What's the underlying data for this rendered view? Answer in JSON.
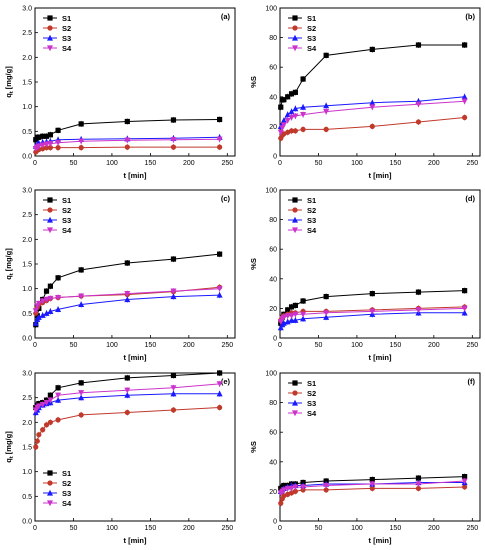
{
  "palette": {
    "S1": "#000000",
    "S2": "#c0392b",
    "S3": "#1a1aff",
    "S4": "#cc33cc"
  },
  "markers": {
    "S1": "square",
    "S2": "circle",
    "S3": "triangle-up",
    "S4": "triangle-down"
  },
  "chart_data": [
    {
      "panel": "(a)",
      "type": "scatter",
      "xlabel": "t [min]",
      "ylabel": "qt [mg/g]",
      "ylabel_main": "q",
      "ylabel_sub": "t",
      "ylabel_unit": " [mg/g]",
      "xlim": [
        0,
        260
      ],
      "ylim": [
        0,
        3.0
      ],
      "xticks": [
        0,
        50,
        100,
        150,
        200,
        250
      ],
      "yticks": [
        0.0,
        0.5,
        1.0,
        1.5,
        2.0,
        2.5,
        3.0
      ],
      "ytick_labels": [
        "0.0",
        "0.5",
        "1.0",
        "1.5",
        "2.0",
        "2.5",
        "3.0"
      ],
      "legend": "top-left",
      "x": [
        1,
        3,
        5,
        10,
        15,
        20,
        30,
        60,
        120,
        180,
        240
      ],
      "series": [
        {
          "name": "S1",
          "values": [
            0.33,
            0.38,
            0.38,
            0.4,
            0.4,
            0.43,
            0.52,
            0.65,
            0.7,
            0.73,
            0.74
          ]
        },
        {
          "name": "S2",
          "values": [
            0.08,
            0.12,
            0.13,
            0.15,
            0.17,
            0.17,
            0.17,
            0.17,
            0.18,
            0.18,
            0.18
          ]
        },
        {
          "name": "S3",
          "values": [
            0.2,
            0.24,
            0.26,
            0.28,
            0.29,
            0.3,
            0.33,
            0.34,
            0.35,
            0.36,
            0.38
          ]
        },
        {
          "name": "S4",
          "values": [
            0.15,
            0.18,
            0.2,
            0.22,
            0.24,
            0.25,
            0.27,
            0.3,
            0.32,
            0.33,
            0.34
          ]
        }
      ]
    },
    {
      "panel": "(b)",
      "type": "scatter",
      "xlabel": "t [min]",
      "ylabel": "%S",
      "xlim": [
        0,
        260
      ],
      "ylim": [
        0,
        100
      ],
      "xticks": [
        0,
        50,
        100,
        150,
        200,
        250
      ],
      "yticks": [
        0,
        20,
        40,
        60,
        80,
        100
      ],
      "ytick_labels": [
        "0",
        "20",
        "40",
        "60",
        "80",
        "100"
      ],
      "legend": "top-left",
      "x": [
        1,
        3,
        5,
        10,
        15,
        20,
        30,
        60,
        120,
        180,
        240
      ],
      "series": [
        {
          "name": "S1",
          "values": [
            33,
            38,
            38,
            40,
            42,
            43,
            52,
            68,
            72,
            75,
            75
          ]
        },
        {
          "name": "S2",
          "values": [
            12,
            14,
            15,
            16,
            17,
            17,
            18,
            18,
            20,
            23,
            26
          ]
        },
        {
          "name": "S3",
          "values": [
            20,
            22,
            24,
            28,
            30,
            32,
            33,
            34,
            36,
            37,
            40
          ]
        },
        {
          "name": "S4",
          "values": [
            16,
            19,
            21,
            24,
            26,
            27,
            28,
            30,
            33,
            35,
            37
          ]
        }
      ]
    },
    {
      "panel": "(c)",
      "type": "scatter",
      "xlabel": "t [min]",
      "ylabel": "qt [mg/g]",
      "ylabel_main": "q",
      "ylabel_sub": "t",
      "ylabel_unit": " [mg/g]",
      "xlim": [
        0,
        260
      ],
      "ylim": [
        0,
        3.0
      ],
      "xticks": [
        0,
        50,
        100,
        150,
        200,
        250
      ],
      "yticks": [
        0.0,
        0.5,
        1.0,
        1.5,
        2.0,
        2.5,
        3.0
      ],
      "ytick_labels": [
        "0.0",
        "0.5",
        "1.0",
        "1.5",
        "2.0",
        "2.5",
        "3.0"
      ],
      "legend": "top-left",
      "x": [
        1,
        3,
        5,
        10,
        15,
        20,
        30,
        60,
        120,
        180,
        240
      ],
      "series": [
        {
          "name": "S1",
          "values": [
            0.27,
            0.45,
            0.6,
            0.78,
            0.95,
            1.05,
            1.22,
            1.38,
            1.52,
            1.6,
            1.7
          ]
        },
        {
          "name": "S2",
          "values": [
            0.5,
            0.62,
            0.68,
            0.72,
            0.76,
            0.8,
            0.82,
            0.85,
            0.88,
            0.94,
            1.03
          ]
        },
        {
          "name": "S3",
          "values": [
            0.3,
            0.38,
            0.42,
            0.46,
            0.5,
            0.54,
            0.58,
            0.68,
            0.78,
            0.84,
            0.87
          ]
        },
        {
          "name": "S4",
          "values": [
            0.55,
            0.65,
            0.7,
            0.75,
            0.78,
            0.8,
            0.82,
            0.85,
            0.9,
            0.95,
            1.0
          ]
        }
      ]
    },
    {
      "panel": "(d)",
      "type": "scatter",
      "xlabel": "t [min]",
      "ylabel": "%S",
      "xlim": [
        0,
        260
      ],
      "ylim": [
        0,
        100
      ],
      "xticks": [
        0,
        50,
        100,
        150,
        200,
        250
      ],
      "yticks": [
        0,
        20,
        40,
        60,
        80,
        100
      ],
      "ytick_labels": [
        "0",
        "20",
        "40",
        "60",
        "80",
        "100"
      ],
      "legend": "top-left",
      "x": [
        1,
        3,
        5,
        10,
        15,
        20,
        30,
        60,
        120,
        180,
        240
      ],
      "series": [
        {
          "name": "S1",
          "values": [
            10,
            14,
            16,
            19,
            21,
            22,
            25,
            28,
            30,
            31,
            32
          ]
        },
        {
          "name": "S2",
          "values": [
            12,
            14,
            15,
            16,
            17,
            17,
            18,
            18,
            19,
            20,
            21
          ]
        },
        {
          "name": "S3",
          "values": [
            7,
            9,
            10,
            11,
            12,
            12,
            13,
            14,
            16,
            17,
            17
          ]
        },
        {
          "name": "S4",
          "values": [
            11,
            13,
            14,
            15,
            15,
            16,
            16,
            17,
            18,
            19,
            20
          ]
        }
      ]
    },
    {
      "panel": "(e)",
      "type": "scatter",
      "xlabel": "t [min]",
      "ylabel": "qt [mg/g]",
      "ylabel_main": "q",
      "ylabel_sub": "t",
      "ylabel_unit": " [mg/g]",
      "xlim": [
        0,
        260
      ],
      "ylim": [
        0,
        3.0
      ],
      "xticks": [
        0,
        50,
        100,
        150,
        200,
        250
      ],
      "yticks": [
        0.0,
        0.5,
        1.0,
        1.5,
        2.0,
        2.5,
        3.0
      ],
      "ytick_labels": [
        "0.0",
        "0.5",
        "1.0",
        "1.5",
        "2.0",
        "2.5",
        "3.0"
      ],
      "legend": "bottom-left",
      "x": [
        1,
        3,
        5,
        10,
        15,
        20,
        30,
        60,
        120,
        180,
        240
      ],
      "series": [
        {
          "name": "S1",
          "values": [
            2.3,
            2.35,
            2.38,
            2.4,
            2.45,
            2.55,
            2.7,
            2.8,
            2.9,
            2.95,
            3.0
          ]
        },
        {
          "name": "S2",
          "values": [
            1.5,
            1.62,
            1.75,
            1.85,
            1.95,
            2.0,
            2.05,
            2.15,
            2.2,
            2.25,
            2.3
          ]
        },
        {
          "name": "S3",
          "values": [
            2.2,
            2.25,
            2.3,
            2.35,
            2.38,
            2.4,
            2.45,
            2.5,
            2.55,
            2.58,
            2.58
          ]
        },
        {
          "name": "S4",
          "values": [
            2.25,
            2.3,
            2.33,
            2.36,
            2.4,
            2.45,
            2.55,
            2.6,
            2.65,
            2.7,
            2.78
          ]
        }
      ]
    },
    {
      "panel": "(f)",
      "type": "scatter",
      "xlabel": "t [min]",
      "ylabel": "%S",
      "xlim": [
        0,
        260
      ],
      "ylim": [
        0,
        100
      ],
      "xticks": [
        0,
        50,
        100,
        150,
        200,
        250
      ],
      "yticks": [
        0,
        20,
        40,
        60,
        80,
        100
      ],
      "ytick_labels": [
        "0",
        "20",
        "40",
        "60",
        "80",
        "100"
      ],
      "legend": "top-left",
      "x": [
        1,
        3,
        5,
        10,
        15,
        20,
        30,
        60,
        120,
        180,
        240
      ],
      "series": [
        {
          "name": "S1",
          "values": [
            22,
            23,
            24,
            24,
            25,
            25,
            26,
            27,
            28,
            29,
            30
          ]
        },
        {
          "name": "S2",
          "values": [
            12,
            15,
            17,
            18,
            19,
            20,
            21,
            21,
            22,
            22,
            23
          ]
        },
        {
          "name": "S3",
          "values": [
            20,
            21,
            22,
            23,
            24,
            24,
            24,
            25,
            25,
            26,
            26
          ]
        },
        {
          "name": "S4",
          "values": [
            19,
            20,
            21,
            22,
            22,
            23,
            23,
            24,
            25,
            25,
            27
          ]
        }
      ]
    }
  ]
}
